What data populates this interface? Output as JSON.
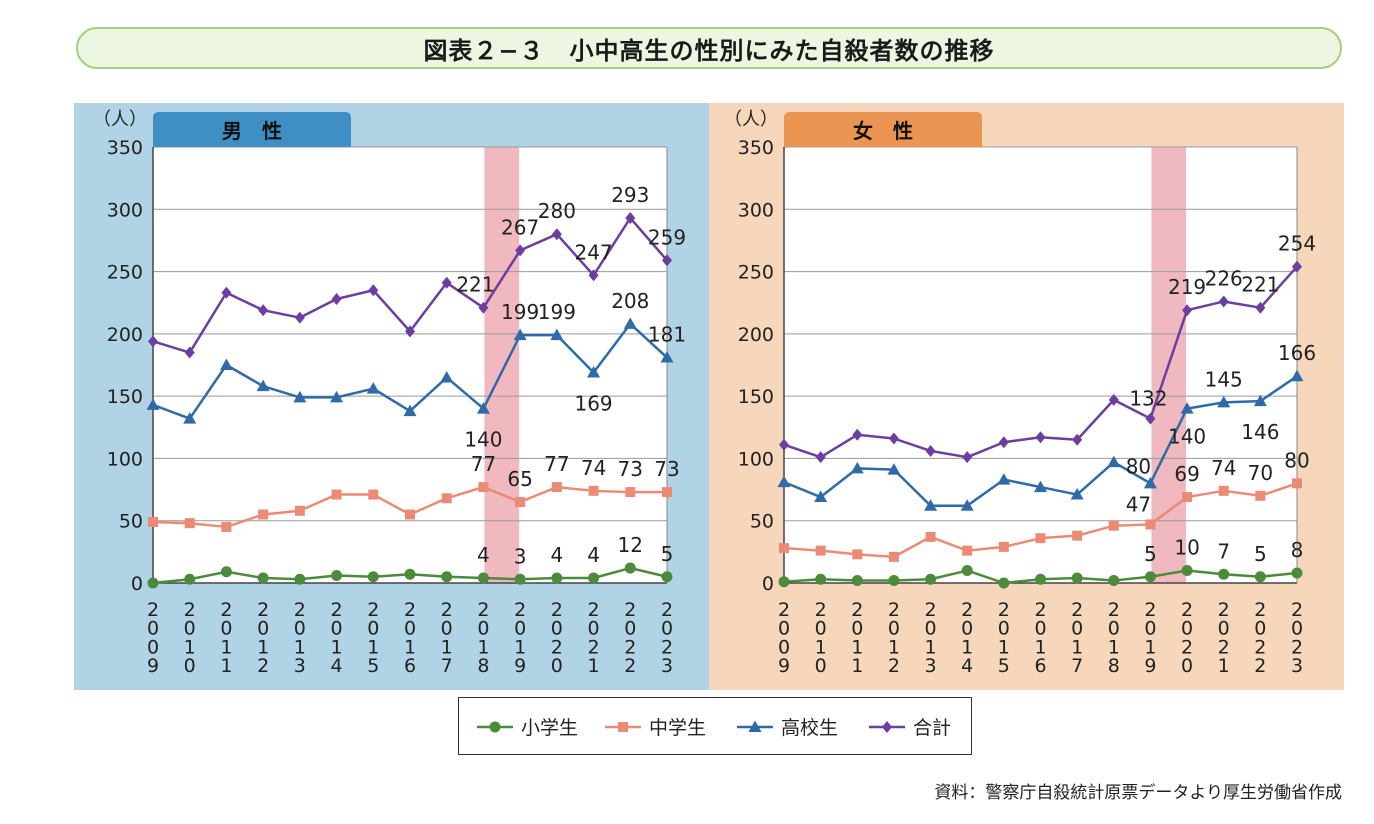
{
  "figure_title": "図表２−３　小中高生の性別にみた自殺者数の推移",
  "source": "資料：警察庁自殺統計原票データより厚生労働省作成",
  "colors": {
    "male_bg": "#b1d3e6",
    "male_tab": "#3e8fc3",
    "female_bg": "#f6d7bb",
    "female_tab": "#eb9552",
    "highlight_band": "#f0b9bf",
    "elementary": "#4c8b3c",
    "junior_high": "#eb8b75",
    "high_school": "#2f6aa9",
    "total": "#6b3fa0"
  },
  "legend": [
    {
      "key": "elementary",
      "label": "小学生",
      "marker": "circle"
    },
    {
      "key": "junior_high",
      "label": "中学生",
      "marker": "square"
    },
    {
      "key": "high_school",
      "label": "高校生",
      "marker": "triangle"
    },
    {
      "key": "total",
      "label": "合計",
      "marker": "diamond"
    }
  ],
  "chart_data": [
    {
      "type": "line",
      "panel_label": "男　性",
      "ylabel": "（人）",
      "ylim": [
        0,
        350
      ],
      "yticks": [
        0,
        50,
        100,
        150,
        200,
        250,
        300,
        350
      ],
      "categories": [
        "2009",
        "2010",
        "2011",
        "2012",
        "2013",
        "2014",
        "2015",
        "2016",
        "2017",
        "2018",
        "2019",
        "2020",
        "2021",
        "2022",
        "2023"
      ],
      "highlight_category": "2018",
      "grid": true,
      "series": [
        {
          "key": "elementary",
          "name": "小学生",
          "values": [
            0,
            3,
            9,
            4,
            3,
            6,
            5,
            7,
            5,
            4,
            3,
            4,
            4,
            12,
            5
          ],
          "labeled_from": 9
        },
        {
          "key": "junior_high",
          "name": "中学生",
          "values": [
            49,
            48,
            45,
            55,
            58,
            71,
            71,
            55,
            68,
            77,
            65,
            77,
            74,
            73,
            73
          ],
          "labeled_from": 9
        },
        {
          "key": "high_school",
          "name": "高校生",
          "values": [
            143,
            132,
            175,
            158,
            149,
            149,
            156,
            138,
            165,
            140,
            199,
            199,
            169,
            208,
            181
          ],
          "labeled_from": 9
        },
        {
          "key": "total",
          "name": "合計",
          "values": [
            194,
            185,
            233,
            219,
            213,
            228,
            235,
            202,
            241,
            221,
            267,
            280,
            247,
            293,
            259
          ],
          "labeled_from": 9
        }
      ]
    },
    {
      "type": "line",
      "panel_label": "女　性",
      "ylabel": "（人）",
      "ylim": [
        0,
        350
      ],
      "yticks": [
        0,
        50,
        100,
        150,
        200,
        250,
        300,
        350
      ],
      "categories": [
        "2009",
        "2010",
        "2011",
        "2012",
        "2013",
        "2014",
        "2015",
        "2016",
        "2017",
        "2018",
        "2019",
        "2020",
        "2021",
        "2022",
        "2023"
      ],
      "highlight_category": "2019",
      "grid": true,
      "series": [
        {
          "key": "elementary",
          "name": "小学生",
          "values": [
            1,
            3,
            2,
            2,
            3,
            10,
            0,
            3,
            4,
            2,
            5,
            10,
            7,
            5,
            8
          ],
          "labeled_from": 10
        },
        {
          "key": "junior_high",
          "name": "中学生",
          "values": [
            28,
            26,
            23,
            21,
            37,
            26,
            29,
            36,
            38,
            46,
            47,
            69,
            74,
            70,
            80
          ],
          "labeled_from": 10
        },
        {
          "key": "high_school",
          "name": "高校生",
          "values": [
            81,
            69,
            92,
            91,
            62,
            62,
            83,
            77,
            71,
            97,
            80,
            140,
            145,
            146,
            166
          ],
          "labeled_from": 10
        },
        {
          "key": "total",
          "name": "合計",
          "values": [
            111,
            101,
            119,
            116,
            106,
            101,
            113,
            117,
            115,
            147,
            132,
            219,
            226,
            221,
            254
          ],
          "labeled_from": 10
        }
      ]
    }
  ]
}
